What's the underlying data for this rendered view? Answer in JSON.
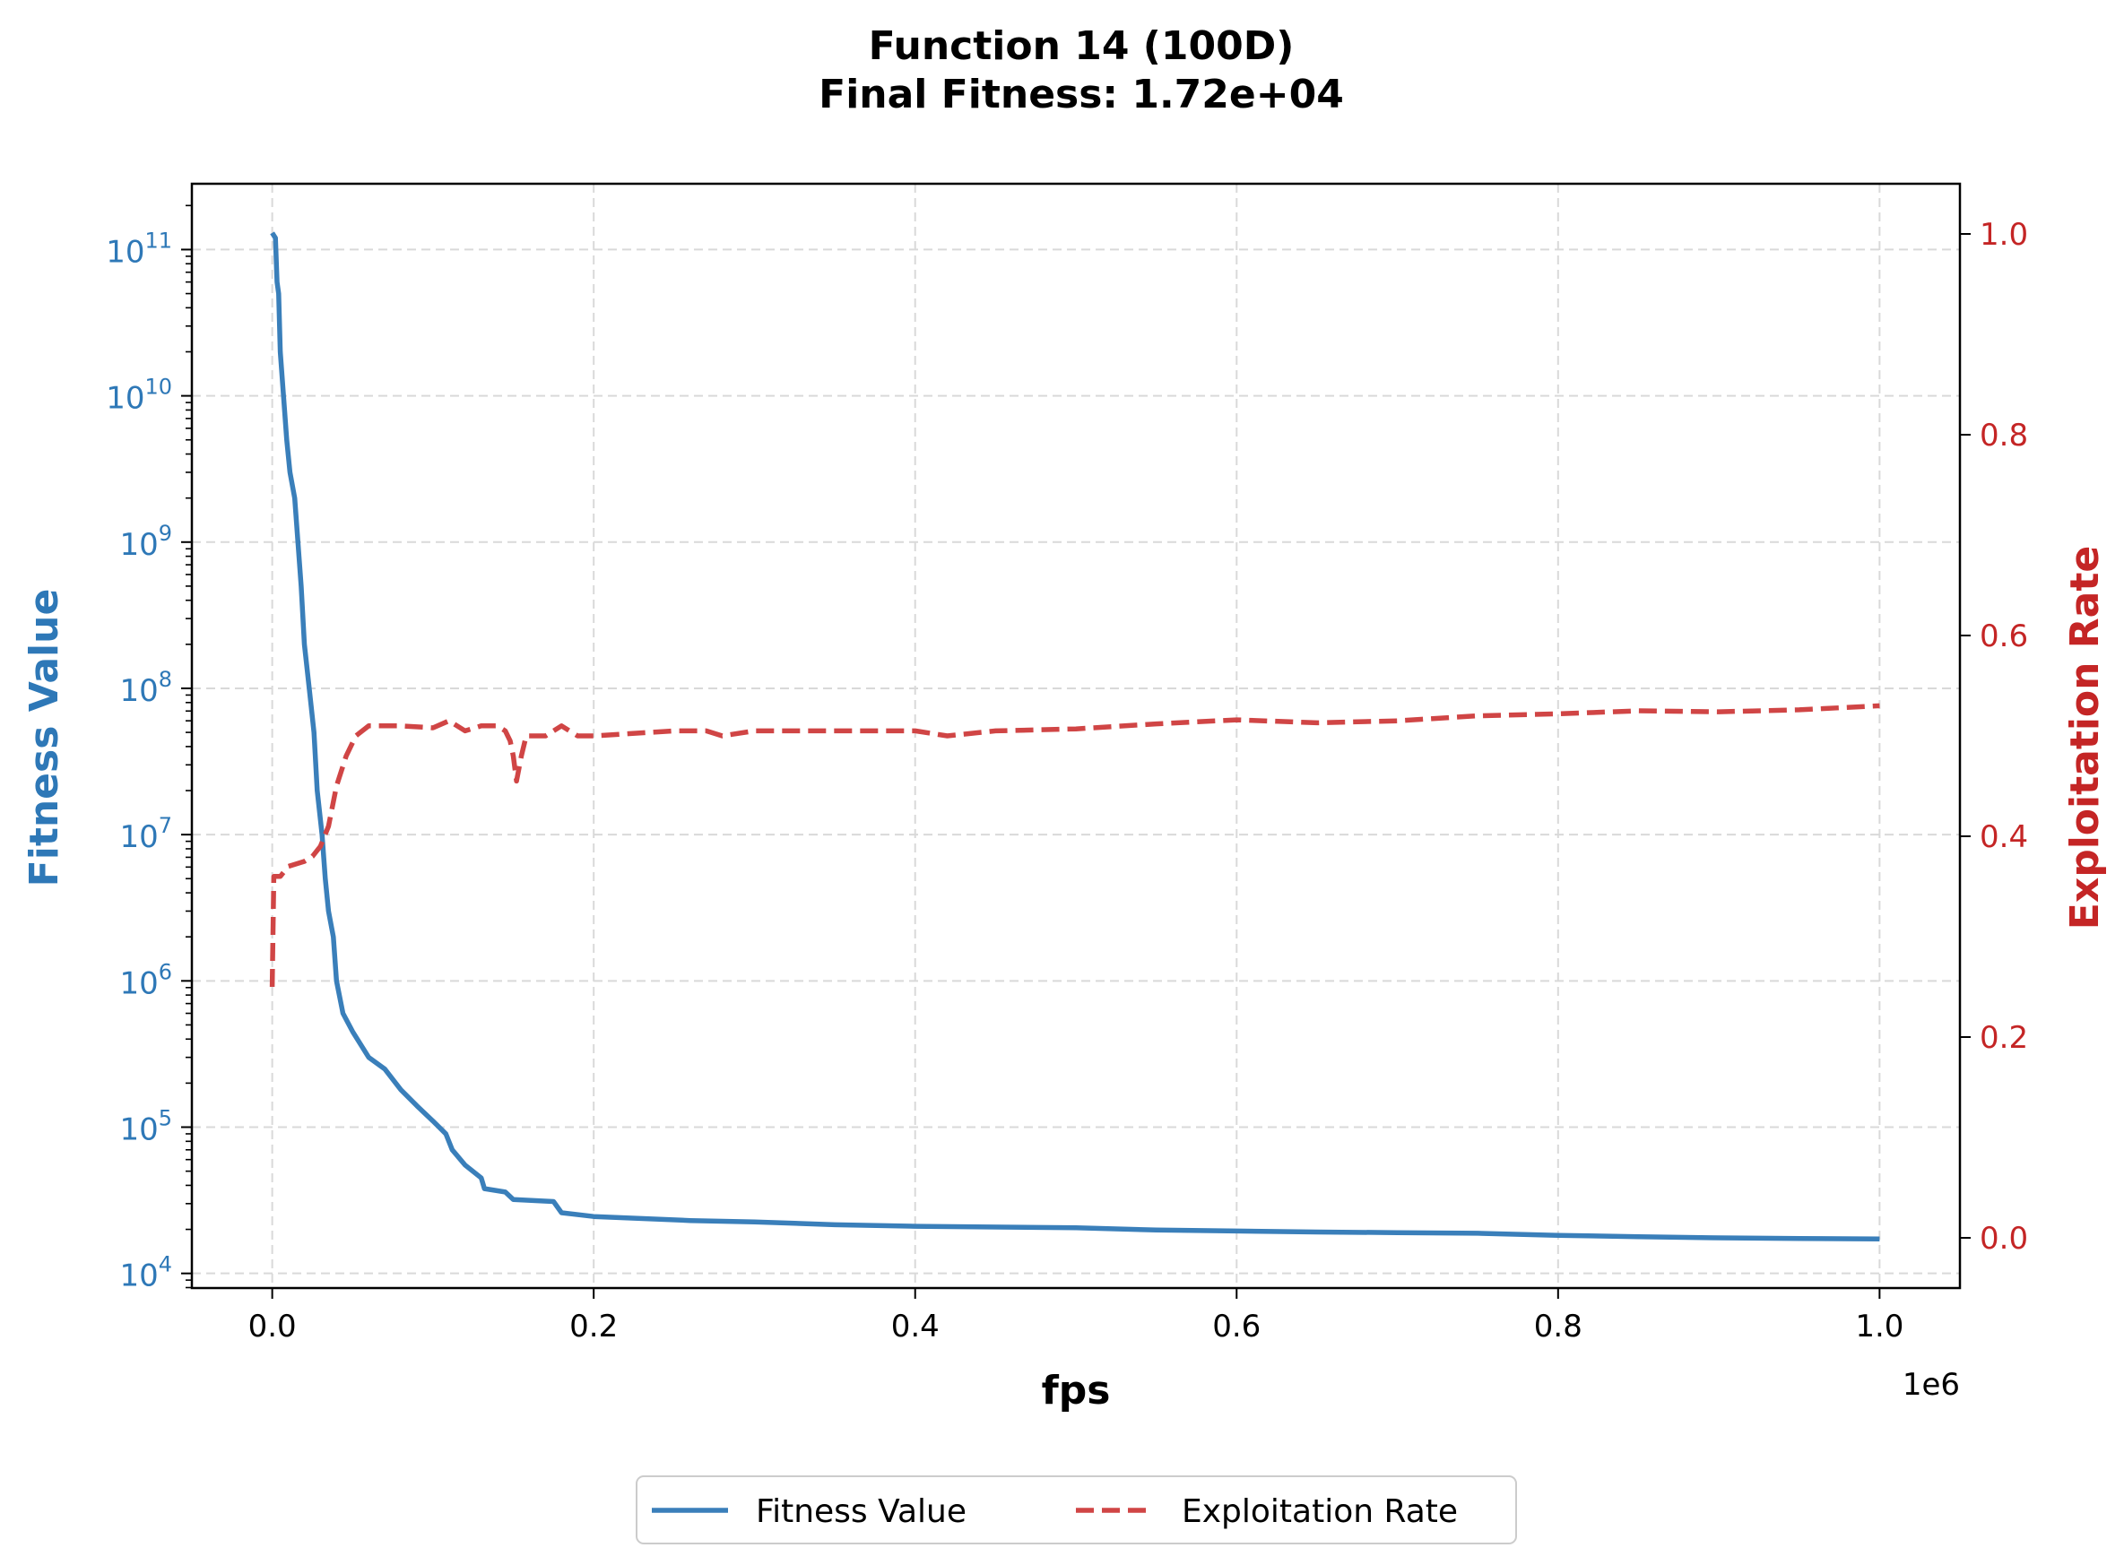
{
  "chart_data": {
    "type": "line",
    "title": "Function 14 (100D)",
    "subtitle": "Final Fitness: 1.72e+04",
    "xlabel": "fps",
    "x_offset_label": "1e6",
    "x_scale": 1000000,
    "xlim": [
      -0.05,
      1.05
    ],
    "x_ticks": [
      0.0,
      0.2,
      0.4,
      0.6,
      0.8,
      1.0
    ],
    "x_tick_labels": [
      "0.0",
      "0.2",
      "0.4",
      "0.6",
      "0.8",
      "1.0"
    ],
    "ylabel_left": "Fitness Value",
    "ylabel_right": "Exploitation Rate",
    "y_left_scale": "log",
    "y_left_ylim_exp": [
      3.9,
      11.45
    ],
    "y_left_tick_exps": [
      4,
      5,
      6,
      7,
      8,
      9,
      10,
      11
    ],
    "y_right_ylim": [
      -0.05,
      1.05
    ],
    "y_right_ticks": [
      0.0,
      0.2,
      0.4,
      0.6,
      0.8,
      1.0
    ],
    "y_right_tick_labels": [
      "0.0",
      "0.2",
      "0.4",
      "0.6",
      "0.8",
      "1.0"
    ],
    "grid": true,
    "legend_position": "bottom-center",
    "series": [
      {
        "name": "Fitness Value",
        "axis": "left",
        "color": "#3a7fba",
        "style": "solid",
        "points": [
          [
            0.0,
            130000000000.0
          ],
          [
            0.002,
            120000000000.0
          ],
          [
            0.003,
            60000000000.0
          ],
          [
            0.004,
            50000000000.0
          ],
          [
            0.005,
            20000000000.0
          ],
          [
            0.007,
            10000000000.0
          ],
          [
            0.009,
            5000000000.0
          ],
          [
            0.011,
            3000000000.0
          ],
          [
            0.014,
            2000000000.0
          ],
          [
            0.016,
            1000000000.0
          ],
          [
            0.018,
            500000000.0
          ],
          [
            0.02,
            200000000.0
          ],
          [
            0.023,
            100000000.0
          ],
          [
            0.026,
            50000000.0
          ],
          [
            0.028,
            20000000.0
          ],
          [
            0.031,
            10000000.0
          ],
          [
            0.033,
            5000000.0
          ],
          [
            0.035,
            3000000.0
          ],
          [
            0.038,
            2000000.0
          ],
          [
            0.04,
            1000000.0
          ],
          [
            0.044,
            600000.0
          ],
          [
            0.05,
            450000.0
          ],
          [
            0.06,
            300000.0
          ],
          [
            0.07,
            250000.0
          ],
          [
            0.08,
            180000.0
          ],
          [
            0.09,
            140000.0
          ],
          [
            0.1,
            110000.0
          ],
          [
            0.108,
            90000.0
          ],
          [
            0.112,
            70000.0
          ],
          [
            0.12,
            55000.0
          ],
          [
            0.13,
            45000.0
          ],
          [
            0.132,
            38000.0
          ],
          [
            0.145,
            36000.0
          ],
          [
            0.15,
            32000.0
          ],
          [
            0.175,
            31000.0
          ],
          [
            0.18,
            26000.0
          ],
          [
            0.2,
            24500.0
          ],
          [
            0.26,
            23000.0
          ],
          [
            0.3,
            22500.0
          ],
          [
            0.35,
            21500.0
          ],
          [
            0.4,
            21000.0
          ],
          [
            0.5,
            20500.0
          ],
          [
            0.55,
            19800.0
          ],
          [
            0.6,
            19500.0
          ],
          [
            0.65,
            19200.0
          ],
          [
            0.7,
            19000.0
          ],
          [
            0.75,
            18800.0
          ],
          [
            0.8,
            18200.0
          ],
          [
            0.85,
            17800.0
          ],
          [
            0.9,
            17500.0
          ],
          [
            0.95,
            17300.0
          ],
          [
            1.0,
            17200.0
          ]
        ]
      },
      {
        "name": "Exploitation Rate",
        "axis": "right",
        "color": "#d04545",
        "style": "dashed",
        "points": [
          [
            0.0,
            0.25
          ],
          [
            0.001,
            0.36
          ],
          [
            0.005,
            0.36
          ],
          [
            0.01,
            0.37
          ],
          [
            0.02,
            0.375
          ],
          [
            0.025,
            0.38
          ],
          [
            0.03,
            0.39
          ],
          [
            0.035,
            0.41
          ],
          [
            0.04,
            0.45
          ],
          [
            0.046,
            0.48
          ],
          [
            0.052,
            0.5
          ],
          [
            0.06,
            0.51
          ],
          [
            0.08,
            0.51
          ],
          [
            0.1,
            0.508
          ],
          [
            0.11,
            0.515
          ],
          [
            0.12,
            0.505
          ],
          [
            0.13,
            0.51
          ],
          [
            0.14,
            0.51
          ],
          [
            0.145,
            0.505
          ],
          [
            0.148,
            0.495
          ],
          [
            0.15,
            0.48
          ],
          [
            0.152,
            0.455
          ],
          [
            0.155,
            0.48
          ],
          [
            0.158,
            0.5
          ],
          [
            0.17,
            0.5
          ],
          [
            0.18,
            0.51
          ],
          [
            0.19,
            0.5
          ],
          [
            0.2,
            0.5
          ],
          [
            0.25,
            0.505
          ],
          [
            0.27,
            0.505
          ],
          [
            0.28,
            0.5
          ],
          [
            0.3,
            0.505
          ],
          [
            0.35,
            0.505
          ],
          [
            0.4,
            0.505
          ],
          [
            0.42,
            0.5
          ],
          [
            0.45,
            0.505
          ],
          [
            0.5,
            0.507
          ],
          [
            0.55,
            0.512
          ],
          [
            0.6,
            0.516
          ],
          [
            0.65,
            0.513
          ],
          [
            0.7,
            0.515
          ],
          [
            0.75,
            0.52
          ],
          [
            0.8,
            0.522
          ],
          [
            0.85,
            0.525
          ],
          [
            0.9,
            0.524
          ],
          [
            0.95,
            0.526
          ],
          [
            1.0,
            0.53
          ]
        ]
      }
    ]
  }
}
